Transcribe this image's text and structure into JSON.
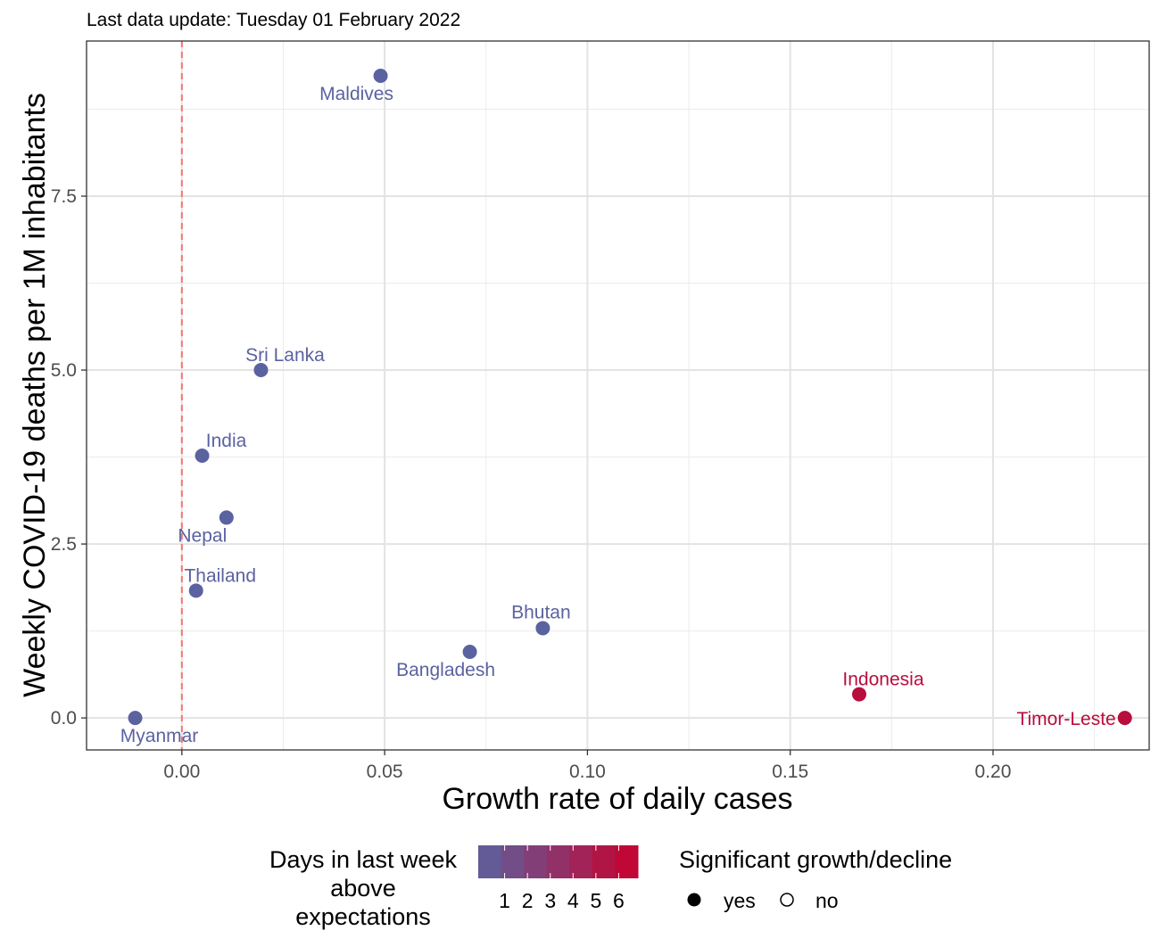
{
  "chart_data": {
    "type": "scatter",
    "subtitle": "Last data update: Tuesday 01 February 2022",
    "xlabel": "Growth rate of daily cases",
    "ylabel": "Weekly COVID-19 deaths per 1M inhabitants",
    "xlim": [
      -0.0235,
      0.2385
    ],
    "ylim": [
      -0.46,
      9.73
    ],
    "x_ticks": [
      0.0,
      0.05,
      0.1,
      0.15,
      0.2
    ],
    "x_tick_labels": [
      "0.00",
      "0.05",
      "0.10",
      "0.15",
      "0.20"
    ],
    "y_ticks": [
      0.0,
      2.5,
      5.0,
      7.5
    ],
    "y_tick_labels": [
      "0.0",
      "2.5",
      "5.0",
      "7.5"
    ],
    "grid": true,
    "reference_line": {
      "x": 0,
      "color": "#F8766D",
      "style": "dashed"
    },
    "points": [
      {
        "label": "Maldives",
        "x": 0.049,
        "y": 9.23,
        "days": 0,
        "significant": "yes",
        "label_pos": "below-left"
      },
      {
        "label": "Sri Lanka",
        "x": 0.0195,
        "y": 5.0,
        "days": 0,
        "significant": "yes",
        "label_pos": "above-right"
      },
      {
        "label": "India",
        "x": 0.005,
        "y": 3.77,
        "days": 0,
        "significant": "yes",
        "label_pos": "above-right"
      },
      {
        "label": "Nepal",
        "x": 0.011,
        "y": 2.88,
        "days": 0,
        "significant": "yes",
        "label_pos": "below-left"
      },
      {
        "label": "Thailand",
        "x": 0.0035,
        "y": 1.83,
        "days": 0,
        "significant": "yes",
        "label_pos": "above-right"
      },
      {
        "label": "Bhutan",
        "x": 0.089,
        "y": 1.29,
        "days": 0,
        "significant": "yes",
        "label_pos": "above"
      },
      {
        "label": "Bangladesh",
        "x": 0.071,
        "y": 0.95,
        "days": 0,
        "significant": "yes",
        "label_pos": "below-left"
      },
      {
        "label": "Indonesia",
        "x": 0.167,
        "y": 0.34,
        "days": 6,
        "significant": "yes",
        "label_pos": "above-right"
      },
      {
        "label": "Timor-Leste",
        "x": 0.2325,
        "y": 0.0,
        "days": 6,
        "significant": "yes",
        "label_pos": "left"
      },
      {
        "label": "Myanmar",
        "x": -0.0115,
        "y": 0.0,
        "days": 0,
        "significant": "yes",
        "label_pos": "below-right"
      }
    ],
    "legend": {
      "placement": "bottom",
      "color_title_lines": [
        "Days in last week",
        "above",
        "expectations"
      ],
      "color_scale": {
        "low": "#5B62A0",
        "high": "#C8002E",
        "min": 0,
        "max": 7
      },
      "color_ticks": [
        "1",
        "2",
        "3",
        "4",
        "5",
        "6"
      ],
      "shape_title": "Significant growth/decline",
      "shape_items": [
        {
          "label": "yes",
          "filled": true
        },
        {
          "label": "no",
          "filled": false
        }
      ]
    }
  }
}
